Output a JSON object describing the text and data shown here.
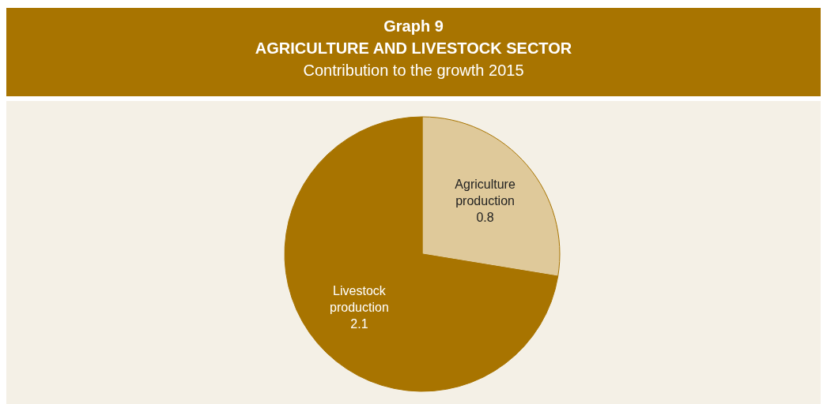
{
  "chart_data": {
    "type": "pie",
    "title": "Graph 9\nAGRICULTURE AND LIVESTOCK SECTOR",
    "subtitle": "Contribution to the growth 2015",
    "categories": [
      "Agriculture production",
      "Livestock production"
    ],
    "values": [
      0.8,
      2.1
    ],
    "colors": [
      "#dfc99a",
      "#a87400"
    ],
    "data_labels": true
  }
}
